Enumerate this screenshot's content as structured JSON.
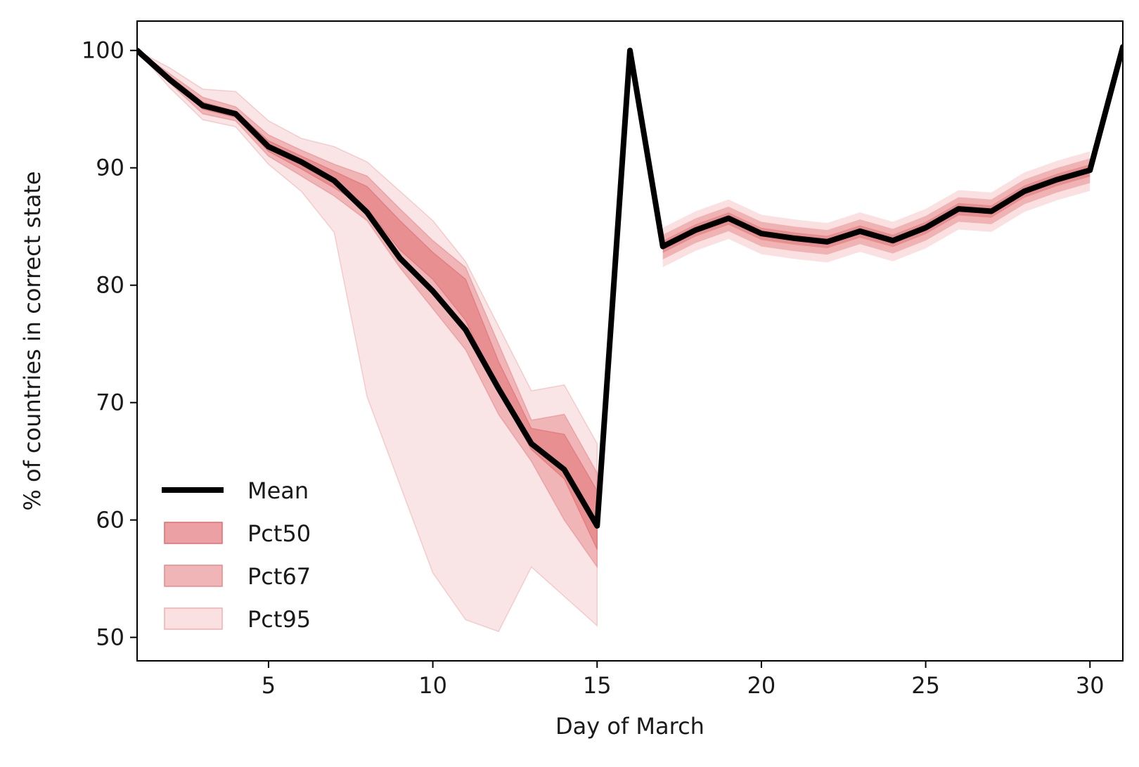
{
  "chart_data": {
    "type": "line",
    "title": "",
    "xlabel": "Day of March",
    "ylabel": "% of countries in correct state",
    "xlim": [
      1,
      31
    ],
    "ylim": [
      48,
      102.5
    ],
    "xticks": [
      5,
      10,
      15,
      20,
      25,
      30
    ],
    "yticks": [
      50,
      60,
      70,
      80,
      90,
      100
    ],
    "grid": false,
    "legend_position": "lower-left",
    "colors": {
      "mean": "#000000",
      "pct50": "#e06f72",
      "pct67": "#e88e90",
      "pct95": "#f5c6c7"
    },
    "series": [
      {
        "name": "Mean",
        "x": [
          1,
          2,
          3,
          4,
          5,
          6,
          7,
          8,
          9,
          10,
          11,
          12,
          13,
          14,
          15,
          16,
          17,
          18,
          19,
          20,
          21,
          22,
          23,
          24,
          25,
          26,
          27,
          28,
          29,
          30,
          31
        ],
        "y": [
          100,
          97.5,
          95.3,
          94.6,
          91.8,
          90.5,
          88.9,
          86.2,
          82.3,
          79.5,
          76.2,
          71.2,
          66.5,
          64.3,
          59.5,
          100,
          83.3,
          84.7,
          85.7,
          84.4,
          84,
          83.7,
          84.6,
          83.8,
          84.9,
          86.5,
          86.3,
          88,
          89,
          89.8,
          100.3
        ]
      },
      {
        "name": "Pct50",
        "x": [
          1,
          2,
          3,
          4,
          5,
          6,
          7,
          8,
          9,
          10,
          11,
          12,
          13,
          14,
          15
        ],
        "lower": [
          100,
          97.4,
          95.0,
          94.3,
          91.4,
          89.9,
          88.3,
          86.5,
          83.0,
          80.5,
          77.0,
          71.0,
          66.0,
          63.5,
          57.5
        ],
        "upper": [
          100,
          97.8,
          95.6,
          94.8,
          92.3,
          91.0,
          89.7,
          88.4,
          85.5,
          82.8,
          80.5,
          73.5,
          67.8,
          67.3,
          62.5
        ]
      },
      {
        "name": "Pct67",
        "x": [
          1,
          2,
          3,
          4,
          5,
          6,
          7,
          8,
          9,
          10,
          11,
          12,
          13,
          14,
          15
        ],
        "lower": [
          100,
          97.2,
          94.6,
          94.0,
          91.0,
          89.3,
          87.6,
          85.5,
          81.5,
          78.0,
          74.5,
          69.0,
          65.0,
          60.0,
          56.0
        ],
        "upper": [
          100,
          98.0,
          96.0,
          95.2,
          92.8,
          91.5,
          90.3,
          89.3,
          86.5,
          83.8,
          81.5,
          75.0,
          68.5,
          69.0,
          64.0
        ]
      },
      {
        "name": "Pct95",
        "x": [
          1,
          2,
          3,
          4,
          5,
          6,
          7,
          8,
          9,
          10,
          11,
          12,
          13,
          14,
          15
        ],
        "lower": [
          100,
          96.8,
          94.1,
          93.5,
          90.3,
          88.0,
          84.5,
          70.5,
          63.0,
          55.5,
          51.5,
          50.5,
          56.0,
          53.5,
          51.0
        ],
        "upper": [
          100,
          98.5,
          96.7,
          96.5,
          94.0,
          92.5,
          91.8,
          90.5,
          88.0,
          85.5,
          82.0,
          76.5,
          71.0,
          71.5,
          66.5
        ]
      }
    ]
  }
}
